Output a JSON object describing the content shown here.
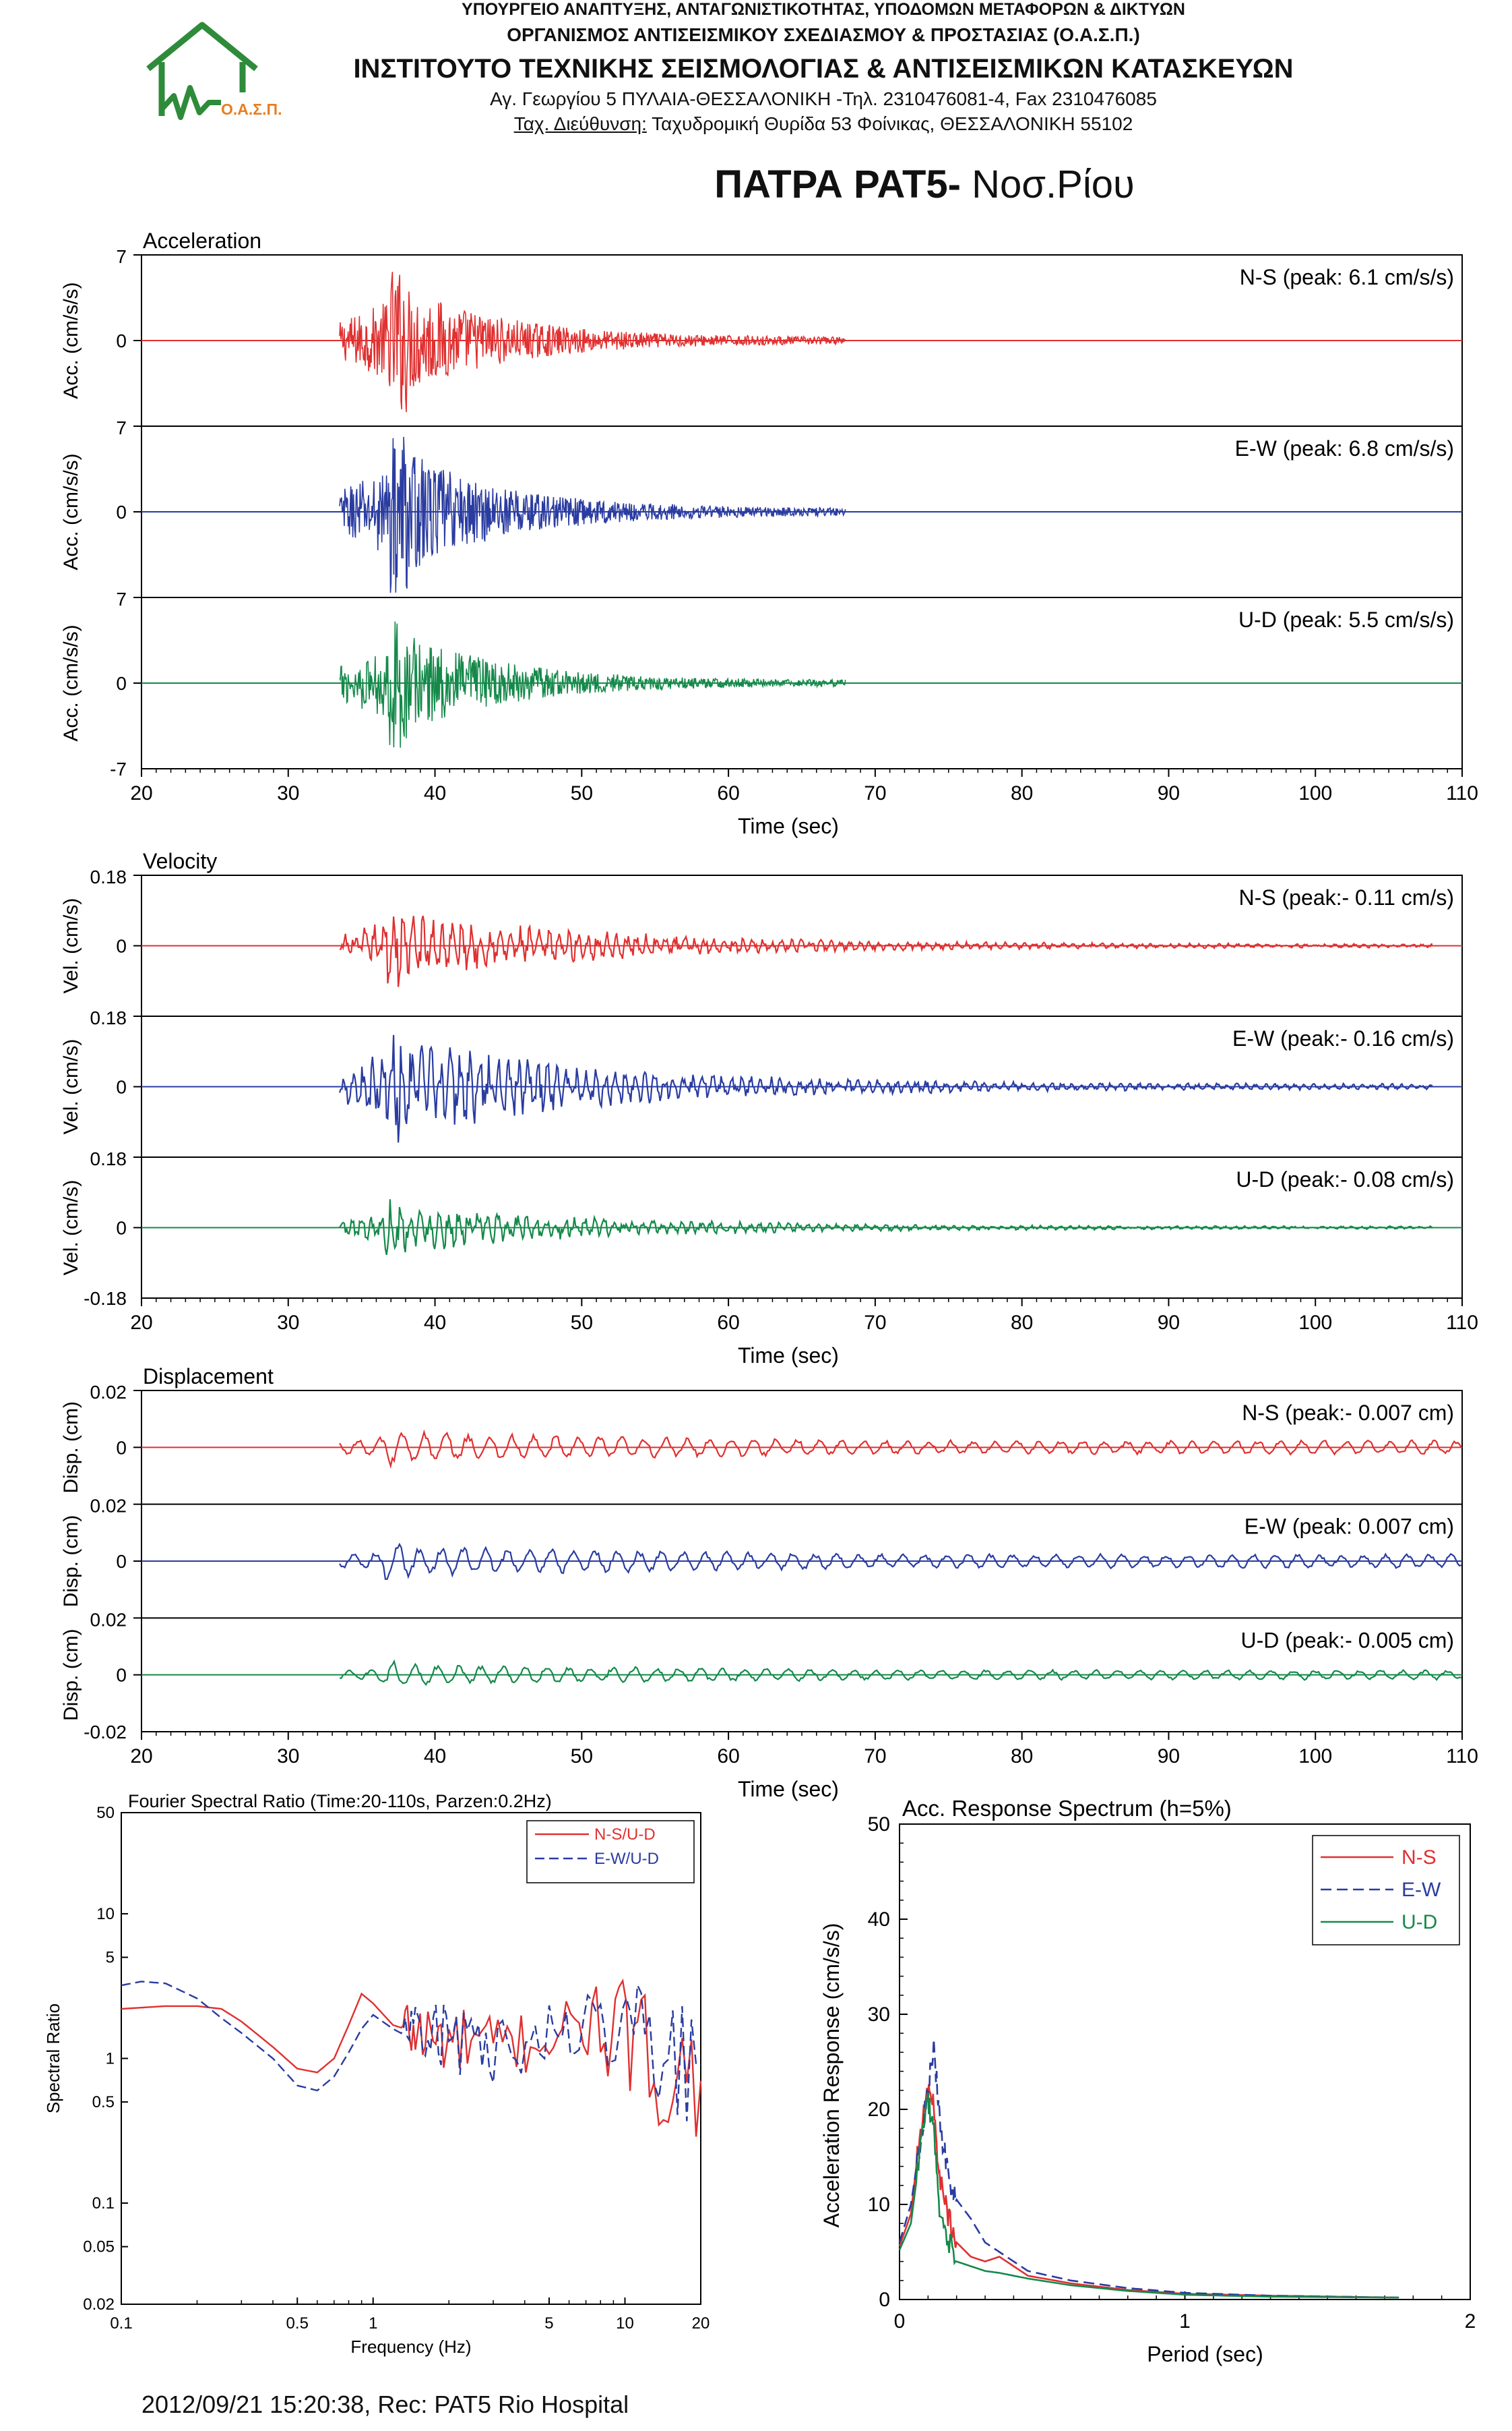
{
  "header": {
    "ministry": "ΥΠΟΥΡΓΕΙΟ ΑΝΑΠΤΥΞΗΣ, ΑΝΤΑΓΩΝΙΣΤΙΚΟΤΗΤΑΣ, ΥΠΟΔΟΜΩΝ ΜΕΤΑΦΟΡΩΝ & ΔΙΚΤΥΩΝ",
    "organization": "ΟΡΓΑΝΙΣΜΟΣ ΑΝΤΙΣΕΙΣΜΙΚΟΥ ΣΧΕΔΙΑΣΜΟΥ & ΠΡΟΣΤΑΣΙΑΣ (Ο.Α.Σ.Π.)",
    "institute": "ΙΝΣΤΙΤΟΥΤΟ ΤΕΧΝΙΚΗΣ ΣΕΙΣΜΟΛΟΓΙΑΣ & ΑΝΤΙΣΕΙΣΜΙΚΩΝ ΚΑΤΑΣΚΕΥΩΝ",
    "address": "Αγ. Γεωργίου 5 ΠΥΛΑΙΑ-ΘΕΣΣΑΛΟΝΙΚΗ -Τηλ. 2310476081-4, Fax 2310476085",
    "postal_label": "Ταχ. Διεύθυνση:",
    "postal": " Ταχυδρομική Θυρίδα 53 Φοίνικας, ΘΕΣΣΑΛΟΝΙΚΗ 55102",
    "logo_text": "Ο.Α.Σ.Π."
  },
  "title": {
    "bold": "ΠΑΤΡΑ PAT5-",
    "normal": " Νοσ.Ρίου"
  },
  "footer": "2012/09/21 15:20:38, Rec: PAT5 Rio Hospital",
  "colors": {
    "ns": "#e03030",
    "ew": "#2a3ca0",
    "ud": "#15894a",
    "logo": "#2e8b3a",
    "logo_text": "#e67e22"
  },
  "chart_data": [
    {
      "type": "line",
      "title": "Acceleration",
      "xlabel": "Time (sec)",
      "ylabel": "Acc. (cm/s/s)",
      "xlim": [
        20,
        110
      ],
      "ylim": [
        -7,
        7
      ],
      "x_ticks": [
        20,
        30,
        40,
        50,
        60,
        70,
        80,
        90,
        100,
        110
      ],
      "y_ticks": [
        "7",
        "0",
        "-7"
      ],
      "series": [
        {
          "component": "N-S",
          "label": "N-S (peak: 6.1 cm/s/s)",
          "peak": 6.1
        },
        {
          "component": "E-W",
          "label": "E-W (peak: 6.8 cm/s/s)",
          "peak": 6.8
        },
        {
          "component": "U-D",
          "label": "U-D (peak: 5.5 cm/s/s)",
          "peak": 5.5
        }
      ],
      "shape": {
        "onset": 33.5,
        "peak_time": 37.5,
        "decay": 7,
        "end": 68
      }
    },
    {
      "type": "line",
      "title": "Velocity",
      "xlabel": "Time (sec)",
      "ylabel": "Vel. (cm/s)",
      "xlim": [
        20,
        110
      ],
      "ylim": [
        -0.18,
        0.18
      ],
      "x_ticks": [
        20,
        30,
        40,
        50,
        60,
        70,
        80,
        90,
        100,
        110
      ],
      "y_ticks": [
        "0.18",
        "0",
        "-0.18"
      ],
      "series": [
        {
          "component": "N-S",
          "label": "N-S (peak:- 0.11 cm/s)",
          "peak": 0.11
        },
        {
          "component": "E-W",
          "label": "E-W (peak:- 0.16 cm/s)",
          "peak": 0.16
        },
        {
          "component": "U-D",
          "label": "U-D (peak:- 0.08 cm/s)",
          "peak": 0.08
        }
      ],
      "shape": {
        "onset": 33.5,
        "peak_time": 37.2,
        "decay": 14,
        "end": 108
      }
    },
    {
      "type": "line",
      "title": "Displacement",
      "xlabel": "Time (sec)",
      "ylabel": "Disp. (cm)",
      "xlim": [
        20,
        110
      ],
      "ylim": [
        -0.02,
        0.02
      ],
      "x_ticks": [
        20,
        30,
        40,
        50,
        60,
        70,
        80,
        90,
        100,
        110
      ],
      "y_ticks": [
        "0.02",
        "0",
        "-0.02"
      ],
      "series": [
        {
          "component": "N-S",
          "label": "N-S (peak:- 0.007 cm)",
          "peak": 0.007
        },
        {
          "component": "E-W",
          "label": "E-W (peak: 0.007 cm)",
          "peak": 0.007
        },
        {
          "component": "U-D",
          "label": "U-D (peak:- 0.005 cm)",
          "peak": 0.005
        }
      ],
      "shape": {
        "onset": 33.5,
        "peak_time": 37.2,
        "decay": 40,
        "end": 110
      }
    },
    {
      "type": "line",
      "title": "Fourier Spectral Ratio (Time:20-110s, Parzen:0.2Hz)",
      "xlabel": "Frequency (Hz)",
      "ylabel": "Spectral Ratio",
      "x_scale": "log",
      "y_scale": "log",
      "xlim": [
        0.1,
        20
      ],
      "ylim": [
        0.02,
        50
      ],
      "x_ticks": [
        "0.1",
        "0.5",
        "1",
        "5",
        "10",
        "20"
      ],
      "x_tick_values": [
        0.1,
        0.5,
        1,
        5,
        10,
        20
      ],
      "y_ticks": [
        "50",
        "10",
        "5",
        "1",
        "0.5",
        "0.1",
        "0.05",
        "0.02"
      ],
      "y_tick_values": [
        50,
        10,
        5,
        1,
        0.5,
        0.1,
        0.05,
        0.02
      ],
      "legend_position": "top-right",
      "series": [
        {
          "name": "N-S/U-D",
          "x": [
            0.1,
            0.15,
            0.2,
            0.25,
            0.3,
            0.4,
            0.5,
            0.6,
            0.7,
            0.8,
            0.9,
            1.0,
            1.2,
            1.5,
            2,
            3,
            5,
            8,
            12,
            20
          ],
          "values": [
            2.2,
            2.3,
            2.3,
            2.2,
            1.8,
            1.2,
            0.85,
            0.8,
            1.0,
            1.7,
            2.8,
            2.4,
            1.7,
            1.5,
            1.3,
            1.2,
            1.4,
            1.8,
            1.0,
            0.7
          ]
        },
        {
          "name": "E-W/U-D",
          "x": [
            0.1,
            0.12,
            0.15,
            0.2,
            0.25,
            0.3,
            0.4,
            0.5,
            0.6,
            0.7,
            0.8,
            0.9,
            1.0,
            1.2,
            1.5,
            2,
            3,
            5,
            8,
            12,
            20
          ],
          "values": [
            3.2,
            3.4,
            3.3,
            2.6,
            1.9,
            1.5,
            1.0,
            0.65,
            0.6,
            0.75,
            1.1,
            1.6,
            2.0,
            1.6,
            1.3,
            1.4,
            1.1,
            1.5,
            1.9,
            1.2,
            0.9
          ]
        }
      ]
    },
    {
      "type": "line",
      "title": "Acc. Response Spectrum (h=5%)",
      "xlabel": "Period (sec)",
      "ylabel": "Acceleration Response (cm/s/s)",
      "xlim": [
        0,
        2
      ],
      "ylim": [
        0,
        50
      ],
      "x_ticks": [
        "0",
        "1",
        "2"
      ],
      "y_ticks": [
        "0",
        "10",
        "20",
        "30",
        "40",
        "50"
      ],
      "legend_position": "top-right",
      "series": [
        {
          "name": "N-S",
          "x": [
            0.0,
            0.04,
            0.07,
            0.1,
            0.12,
            0.14,
            0.17,
            0.2,
            0.25,
            0.3,
            0.35,
            0.45,
            0.6,
            0.8,
            1.0,
            1.3,
            1.75
          ],
          "values": [
            5.6,
            9,
            17,
            22,
            20,
            13,
            9,
            6,
            4.5,
            4,
            4.5,
            2.5,
            1.7,
            1,
            0.6,
            0.4,
            0.2
          ]
        },
        {
          "name": "E-W",
          "x": [
            0.0,
            0.04,
            0.07,
            0.1,
            0.12,
            0.14,
            0.17,
            0.2,
            0.25,
            0.3,
            0.35,
            0.45,
            0.6,
            0.8,
            1.0,
            1.3,
            1.75
          ],
          "values": [
            6,
            10,
            16,
            22,
            27,
            19,
            13,
            10.5,
            8.5,
            6,
            5,
            3,
            2,
            1.2,
            0.7,
            0.4,
            0.2
          ]
        },
        {
          "name": "U-D",
          "x": [
            0.0,
            0.04,
            0.07,
            0.1,
            0.12,
            0.14,
            0.17,
            0.2,
            0.25,
            0.3,
            0.35,
            0.45,
            0.6,
            0.8,
            1.0,
            1.3,
            1.75
          ],
          "values": [
            5.2,
            8,
            15,
            21,
            18,
            10,
            6,
            4,
            3.5,
            3,
            2.8,
            2.2,
            1.5,
            0.9,
            0.5,
            0.3,
            0.2
          ]
        }
      ]
    }
  ]
}
